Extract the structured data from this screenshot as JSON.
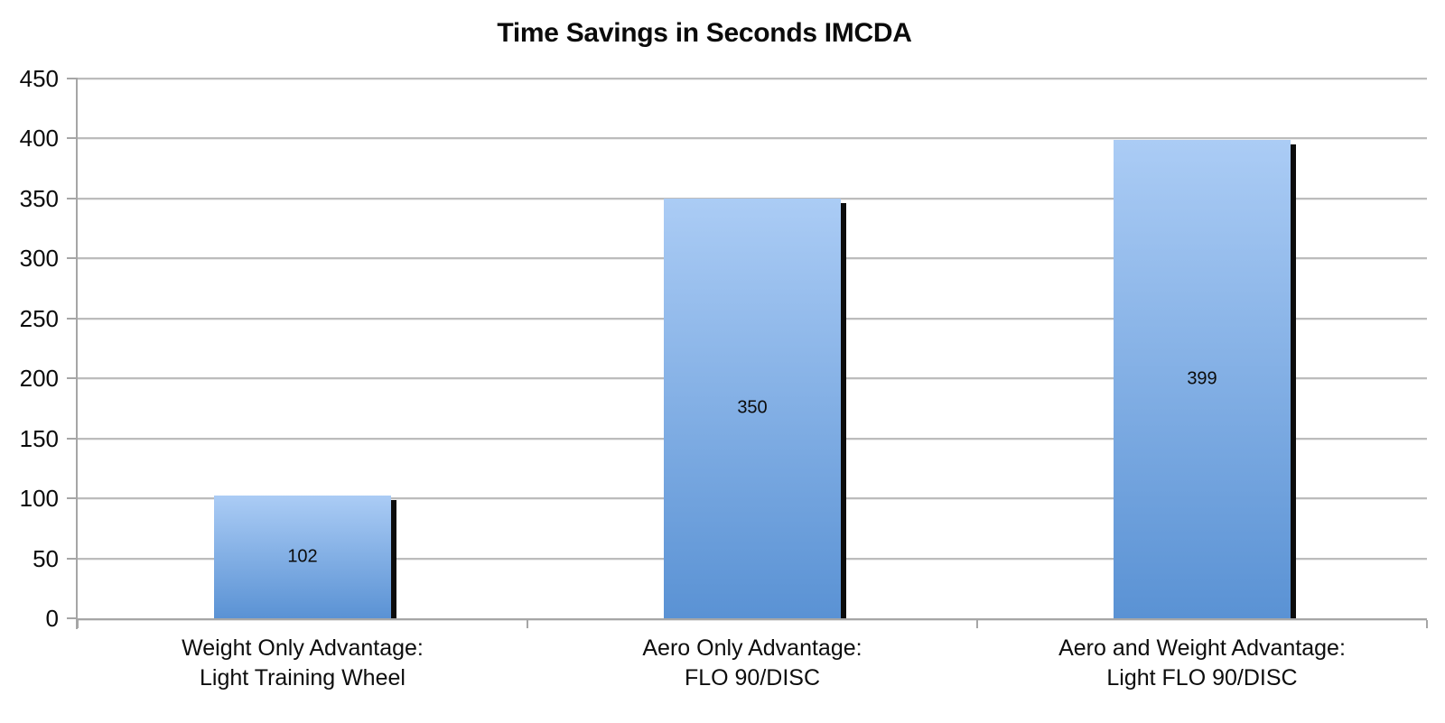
{
  "title": "Time Savings in Seconds IMCDA",
  "colors": {
    "bar_gradient_top": "#abccf5",
    "bar_gradient_bottom": "#5a92d4",
    "bar_shadow": "#0c0c0c",
    "gridline": "#bcbcbc",
    "axis": "#a6a6a6",
    "text": "#0d0d0d",
    "background": "#ffffff"
  },
  "chart_data": {
    "type": "bar",
    "title": "Time Savings in Seconds IMCDA",
    "categories": [
      "Weight Only Advantage:\nLight Training Wheel",
      "Aero Only Advantage:\nFLO 90/DISC",
      "Aero and Weight Advantage:\nLight FLO 90/DISC"
    ],
    "values": [
      102,
      350,
      399
    ],
    "data_labels": [
      102,
      350,
      399
    ],
    "data_label_position": "inside-center",
    "xlabel": "",
    "ylabel": "",
    "ylim": [
      0,
      450
    ],
    "ytick_step": 50,
    "yticks": [
      450,
      400,
      350,
      300,
      250,
      200,
      150,
      100,
      50,
      0
    ],
    "grid": true,
    "legend": "none",
    "bar_style": "gradient-blue-with-right-shadow"
  }
}
